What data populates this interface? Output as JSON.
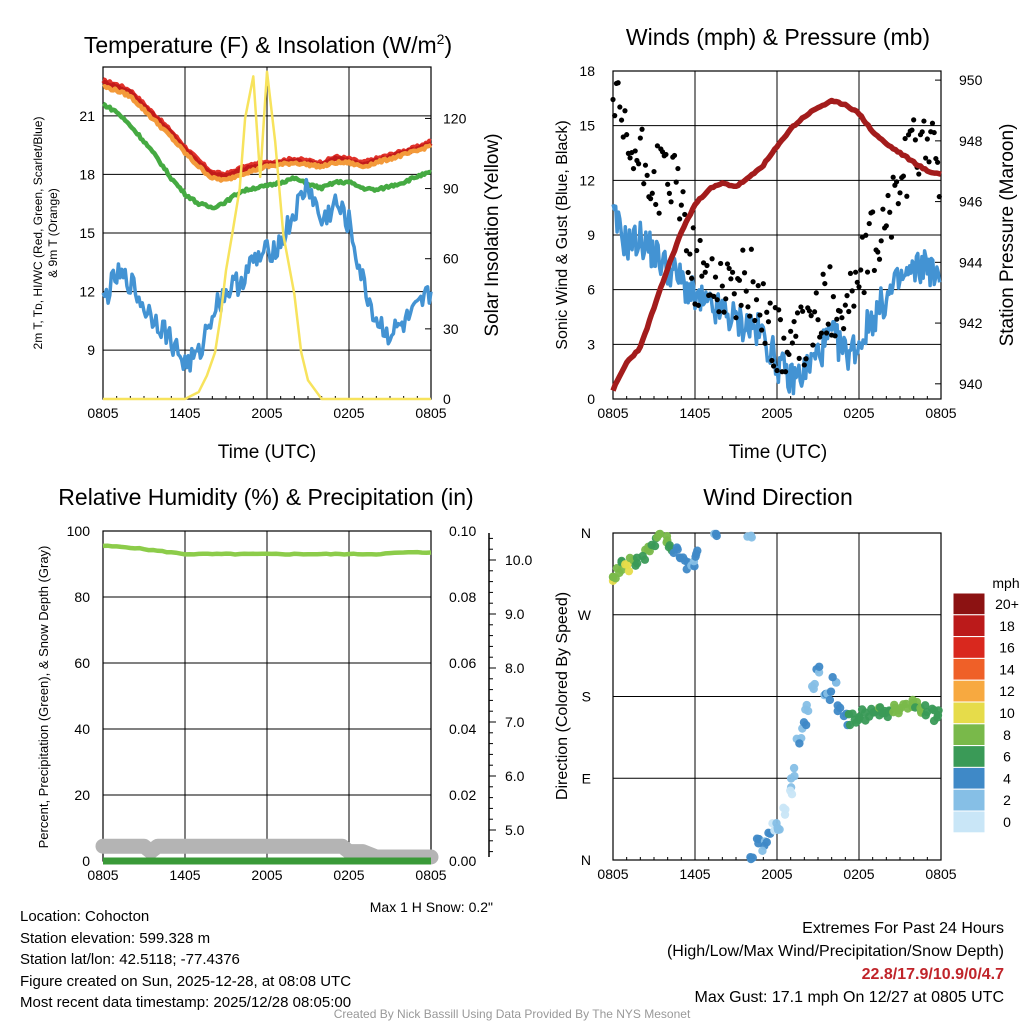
{
  "chart_data": [
    {
      "type": "line",
      "title": "Temperature (F) & Insolation (W/m",
      "title_sup": "2",
      "title_close": ")",
      "xlabel": "Time (UTC)",
      "ylabel_lines": [
        "2m T, Tᴅ, HI/WC (Red, Green, Scarlet/Blue)",
        "& 9m T (Orange)"
      ],
      "y2label": "Solar Insolation (Yellow)",
      "x_ticks": [
        "0805",
        "1405",
        "2005",
        "0205",
        "0805"
      ],
      "ylim": [
        6.5,
        23.5
      ],
      "y_ticks": [
        "9",
        "12",
        "15",
        "18",
        "21"
      ],
      "y2lim": [
        0,
        142
      ],
      "y2_ticks": [
        "0",
        "30",
        "60",
        "90",
        "120"
      ],
      "series": [
        {
          "name": "2m T",
          "color": "#e0322a",
          "x": [
            0,
            1,
            2,
            3,
            4,
            5,
            6,
            7,
            8,
            9,
            10,
            11,
            12,
            13,
            14,
            15,
            16,
            17,
            18,
            19,
            20,
            21,
            22,
            23,
            24
          ],
          "values": [
            22.8,
            22.6,
            22.3,
            21.6,
            20.9,
            20.2,
            19.4,
            18.7,
            18.1,
            18.0,
            18.3,
            18.5,
            18.6,
            18.7,
            18.8,
            18.7,
            18.6,
            18.9,
            18.8,
            18.6,
            18.8,
            19.0,
            19.2,
            19.4,
            19.7
          ]
        },
        {
          "name": "HI/WC Scarlet",
          "color": "#c21a1a",
          "x": [
            0,
            1,
            2,
            3,
            4,
            5,
            6,
            7,
            8,
            9,
            10,
            11,
            12,
            13,
            14,
            15,
            16,
            17,
            18,
            19,
            20,
            21,
            22,
            23,
            24
          ],
          "values": [
            22.7,
            22.5,
            22.2,
            21.5,
            20.8,
            20.1,
            19.3,
            18.6,
            18.0,
            17.9,
            18.2,
            18.4,
            18.5,
            18.6,
            18.7,
            18.6,
            18.5,
            18.8,
            18.7,
            18.5,
            18.7,
            18.9,
            19.1,
            19.3,
            19.6
          ]
        },
        {
          "name": "9m T",
          "color": "#f39a3a",
          "x": [
            0,
            1,
            2,
            3,
            4,
            5,
            6,
            7,
            8,
            9,
            10,
            11,
            12,
            13,
            14,
            15,
            16,
            17,
            18,
            19,
            20,
            21,
            22,
            23,
            24
          ],
          "values": [
            22.5,
            22.3,
            22.0,
            21.3,
            20.6,
            19.9,
            19.1,
            18.4,
            17.8,
            17.7,
            18.0,
            18.2,
            18.4,
            18.5,
            18.6,
            18.5,
            18.4,
            18.6,
            18.6,
            18.4,
            18.6,
            18.8,
            19.0,
            19.2,
            19.5
          ]
        },
        {
          "name": "Dewpoint",
          "color": "#45aa42",
          "x": [
            0,
            1,
            2,
            3,
            4,
            5,
            6,
            7,
            8,
            9,
            10,
            11,
            12,
            13,
            14,
            15,
            16,
            17,
            18,
            19,
            20,
            21,
            22,
            23,
            24
          ],
          "values": [
            21.6,
            21.2,
            20.5,
            19.7,
            18.8,
            17.8,
            17.0,
            16.5,
            16.3,
            16.6,
            17.1,
            17.3,
            17.4,
            17.6,
            17.8,
            17.5,
            17.3,
            17.6,
            17.6,
            17.3,
            17.2,
            17.4,
            17.6,
            17.9,
            18.1
          ]
        },
        {
          "name": "WC Blue",
          "color": "#4393d3",
          "x": [
            0,
            1,
            2,
            3,
            4,
            5,
            6,
            7,
            8,
            9,
            10,
            11,
            12,
            13,
            14,
            15,
            16,
            17,
            18,
            19,
            20,
            21,
            22,
            23,
            24
          ],
          "values": [
            11.5,
            12.8,
            12.5,
            11.2,
            10.5,
            9.5,
            8.3,
            8.7,
            11.0,
            12.0,
            12.5,
            13.5,
            14.0,
            14.5,
            16.0,
            17.5,
            15.5,
            16.5,
            15.5,
            12.5,
            10.5,
            9.8,
            10.3,
            11.0,
            12.0
          ]
        },
        {
          "name": "Solar Insolation",
          "color": "#f7e35d",
          "x": [
            0,
            1,
            2,
            3,
            4,
            5,
            6,
            7,
            7.6,
            8.2,
            8.6,
            9,
            9.5,
            10,
            10.4,
            11,
            11.5,
            12,
            12.6,
            13.2,
            14,
            14.5,
            15,
            16,
            17,
            18,
            19,
            20,
            21,
            22,
            23,
            24
          ],
          "values": [
            0,
            0,
            0,
            0,
            0,
            0,
            0,
            3,
            10,
            20,
            35,
            55,
            72,
            90,
            120,
            138,
            95,
            140,
            110,
            70,
            45,
            20,
            8,
            0,
            0,
            0,
            0,
            0,
            0,
            0,
            0,
            0
          ]
        }
      ]
    },
    {
      "type": "scatter",
      "title": "Winds (mph) & Pressure (mb)",
      "xlabel": "Time (UTC)",
      "ylabel": "Sonic Wind & Gust (Blue, Black)",
      "y2label": "Station Pressure (Maroon)",
      "x_ticks": [
        "0805",
        "1405",
        "2005",
        "0205",
        "0805"
      ],
      "ylim": [
        0,
        18
      ],
      "y_ticks": [
        "0",
        "3",
        "6",
        "9",
        "12",
        "15",
        "18"
      ],
      "y2lim": [
        939.5,
        950.3
      ],
      "y2_ticks": [
        "940",
        "942",
        "944",
        "946",
        "948",
        "950"
      ],
      "series": [
        {
          "name": "Sonic Wind",
          "color": "#4393d3",
          "x": [
            0,
            1,
            2,
            3,
            4,
            5,
            6,
            7,
            8,
            9,
            10,
            11,
            12,
            13,
            14,
            15,
            16,
            17,
            18,
            19,
            20,
            21,
            22,
            23,
            24
          ],
          "values": [
            10.0,
            8.5,
            8.8,
            8.0,
            7.2,
            6.5,
            5.5,
            5.0,
            4.8,
            4.3,
            4.0,
            3.5,
            2.0,
            1.0,
            1.5,
            2.5,
            3.5,
            2.5,
            3.0,
            4.5,
            5.5,
            6.5,
            7.0,
            7.5,
            6.0
          ]
        },
        {
          "name": "Gust",
          "color": "#000000",
          "x": [
            0,
            1,
            2,
            3,
            4,
            5,
            6,
            7,
            8,
            9,
            10,
            11,
            12,
            13,
            14,
            15,
            16,
            17,
            18,
            19,
            20,
            21,
            22,
            23,
            24
          ],
          "values": [
            16.5,
            13.5,
            13.0,
            12.0,
            12.5,
            10.5,
            7.0,
            6.5,
            6.5,
            6.0,
            6.5,
            5.0,
            3.0,
            2.5,
            3.5,
            4.5,
            5.5,
            5.0,
            6.5,
            8.5,
            9.5,
            12.0,
            13.5,
            15.0,
            11.0
          ]
        },
        {
          "name": "Station Pressure",
          "color": "#a31c1c",
          "x": [
            0,
            1,
            2,
            3,
            4,
            5,
            6,
            7,
            8,
            9,
            10,
            11,
            12,
            13,
            14,
            15,
            16,
            17,
            18,
            19,
            20,
            21,
            22,
            23,
            24
          ],
          "values": [
            939.8,
            940.7,
            941.2,
            942.5,
            943.8,
            945.0,
            945.9,
            946.4,
            946.6,
            946.5,
            946.8,
            947.2,
            947.8,
            948.4,
            948.8,
            949.1,
            949.3,
            949.2,
            948.9,
            948.3,
            947.9,
            947.6,
            947.3,
            947.0,
            946.9
          ]
        }
      ]
    },
    {
      "type": "line",
      "title": "Relative Humidity (%) & Precipitation (in)",
      "ylabel": "Percent, Precipitation (Green), & Snow Depth (Gray)",
      "x_ticks": [
        "0805",
        "1405",
        "2005",
        "0205",
        "0805"
      ],
      "ylim": [
        0,
        100
      ],
      "y_ticks": [
        "0",
        "20",
        "40",
        "60",
        "80",
        "100"
      ],
      "y2lim": [
        0,
        0.1
      ],
      "y2_ticks": [
        "0.00",
        "0.02",
        "0.04",
        "0.06",
        "0.08",
        "0.10"
      ],
      "y3_ticks": [
        "5.0",
        "6.0",
        "7.0",
        "8.0",
        "9.0",
        "10.0"
      ],
      "snow_note": "Max 1 H Snow: 0.2\"",
      "series": [
        {
          "name": "Relative Humidity",
          "color": "#8ccc4a",
          "x": [
            0,
            2,
            4,
            6,
            8,
            10,
            12,
            14,
            16,
            18,
            20,
            22,
            24
          ],
          "values": [
            95.5,
            95,
            94,
            93,
            93,
            93,
            93,
            93,
            93,
            93,
            93,
            93.5,
            93.5
          ]
        },
        {
          "name": "Precipitation",
          "color": "#3a9a38",
          "x": [
            0,
            24
          ],
          "values": [
            0,
            0
          ]
        },
        {
          "name": "Snow Depth",
          "color": "#b4b4b4",
          "x": [
            0,
            1.5,
            3,
            3.5,
            4,
            4.5,
            6,
            8,
            10,
            12,
            14,
            16,
            17.5,
            18,
            19,
            20,
            21,
            22,
            24
          ],
          "values": [
            4.7,
            4.7,
            4.7,
            4.6,
            4.7,
            4.7,
            4.7,
            4.7,
            4.7,
            4.7,
            4.7,
            4.7,
            4.7,
            4.6,
            4.6,
            4.5,
            4.5,
            4.5,
            4.5
          ]
        }
      ]
    },
    {
      "type": "scatter",
      "title": "Wind Direction",
      "ylabel": "Direction (Colored By Speed)",
      "x_ticks": [
        "0805",
        "1405",
        "2005",
        "0205",
        "0805"
      ],
      "y_ticks": [
        "N",
        "E",
        "S",
        "W",
        "N"
      ],
      "ylim": [
        0,
        360
      ],
      "legend_title": "mph",
      "legend_labels": [
        "0",
        "2",
        "4",
        "6",
        "8",
        "10",
        "12",
        "14",
        "16",
        "18",
        "20+"
      ],
      "legend_colors": [
        "#c9e6f7",
        "#86bfe6",
        "#3f89c7",
        "#3a9a57",
        "#79b94a",
        "#e6dc4a",
        "#f7a940",
        "#ef6028",
        "#d9281e",
        "#bb1a1a",
        "#8c1212"
      ],
      "points": [
        {
          "x": 0.0,
          "dir": 307,
          "speed": 9
        },
        {
          "x": 0.3,
          "dir": 315,
          "speed": 8
        },
        {
          "x": 0.6,
          "dir": 325,
          "speed": 7
        },
        {
          "x": 1.0,
          "dir": 322,
          "speed": 9
        },
        {
          "x": 1.4,
          "dir": 330,
          "speed": 8
        },
        {
          "x": 1.8,
          "dir": 328,
          "speed": 6
        },
        {
          "x": 2.2,
          "dir": 335,
          "speed": 7
        },
        {
          "x": 2.6,
          "dir": 340,
          "speed": 8
        },
        {
          "x": 3.0,
          "dir": 350,
          "speed": 6
        },
        {
          "x": 3.4,
          "dir": 355,
          "speed": 9
        },
        {
          "x": 3.8,
          "dir": 352,
          "speed": 7
        },
        {
          "x": 4.2,
          "dir": 345,
          "speed": 6
        },
        {
          "x": 4.6,
          "dir": 340,
          "speed": 4
        },
        {
          "x": 5.0,
          "dir": 335,
          "speed": 4
        },
        {
          "x": 5.4,
          "dir": 325,
          "speed": 4
        },
        {
          "x": 5.8,
          "dir": 330,
          "speed": 3
        },
        {
          "x": 6.2,
          "dir": 338,
          "speed": 4
        },
        {
          "x": 7.5,
          "dir": 358,
          "speed": 3
        },
        {
          "x": 10.0,
          "dir": 355,
          "speed": 2
        },
        {
          "x": 10.2,
          "dir": 5,
          "speed": 4
        },
        {
          "x": 10.6,
          "dir": 20,
          "speed": 4
        },
        {
          "x": 11.0,
          "dir": 15,
          "speed": 3
        },
        {
          "x": 11.4,
          "dir": 25,
          "speed": 4
        },
        {
          "x": 11.8,
          "dir": 35,
          "speed": 1
        },
        {
          "x": 12.2,
          "dir": 30,
          "speed": 2
        },
        {
          "x": 12.6,
          "dir": 55,
          "speed": 1
        },
        {
          "x": 13.0,
          "dir": 75,
          "speed": 1
        },
        {
          "x": 13.2,
          "dir": 95,
          "speed": 2
        },
        {
          "x": 13.6,
          "dir": 130,
          "speed": 3
        },
        {
          "x": 14.0,
          "dir": 150,
          "speed": 3
        },
        {
          "x": 14.2,
          "dir": 170,
          "speed": 2
        },
        {
          "x": 14.6,
          "dir": 195,
          "speed": 2
        },
        {
          "x": 15.0,
          "dir": 210,
          "speed": 3
        },
        {
          "x": 15.4,
          "dir": 185,
          "speed": 3
        },
        {
          "x": 15.8,
          "dir": 180,
          "speed": 3
        },
        {
          "x": 16.2,
          "dir": 200,
          "speed": 3
        },
        {
          "x": 16.6,
          "dir": 165,
          "speed": 4
        },
        {
          "x": 17.0,
          "dir": 155,
          "speed": 4
        },
        {
          "x": 17.4,
          "dir": 155,
          "speed": 6
        },
        {
          "x": 17.8,
          "dir": 150,
          "speed": 6
        },
        {
          "x": 18.2,
          "dir": 160,
          "speed": 6
        },
        {
          "x": 18.6,
          "dir": 158,
          "speed": 6
        },
        {
          "x": 19.0,
          "dir": 162,
          "speed": 6
        },
        {
          "x": 19.4,
          "dir": 165,
          "speed": 7
        },
        {
          "x": 19.8,
          "dir": 160,
          "speed": 7
        },
        {
          "x": 20.2,
          "dir": 163,
          "speed": 6
        },
        {
          "x": 20.6,
          "dir": 165,
          "speed": 8
        },
        {
          "x": 21.0,
          "dir": 168,
          "speed": 8
        },
        {
          "x": 21.4,
          "dir": 165,
          "speed": 7
        },
        {
          "x": 21.8,
          "dir": 170,
          "speed": 8
        },
        {
          "x": 22.2,
          "dir": 168,
          "speed": 7
        },
        {
          "x": 22.6,
          "dir": 162,
          "speed": 8
        },
        {
          "x": 23.0,
          "dir": 166,
          "speed": 6
        },
        {
          "x": 23.4,
          "dir": 160,
          "speed": 6
        },
        {
          "x": 23.8,
          "dir": 158,
          "speed": 6
        }
      ]
    }
  ],
  "info": {
    "location": "Location: Cohocton",
    "elevation": "Station elevation: 599.328 m",
    "latlon": "Station lat/lon: 42.5118; -77.4376",
    "created": "Figure created on Sun, 2025-12-28, at 08:08 UTC",
    "recent": "Most recent data timestamp: 2025/12/28 08:05:00"
  },
  "extremes": {
    "title": "Extremes For Past 24 Hours",
    "subtitle": "(High/Low/Max Wind/Precipitation/Snow Depth)",
    "values": "22.8/17.9/10.9/0/4.7",
    "values_color": "#c0242a",
    "gust": "Max Gust: 17.1 mph On 12/27 at 0805 UTC"
  },
  "credit": "Created By Nick Bassill Using Data Provided By The NYS Mesonet"
}
